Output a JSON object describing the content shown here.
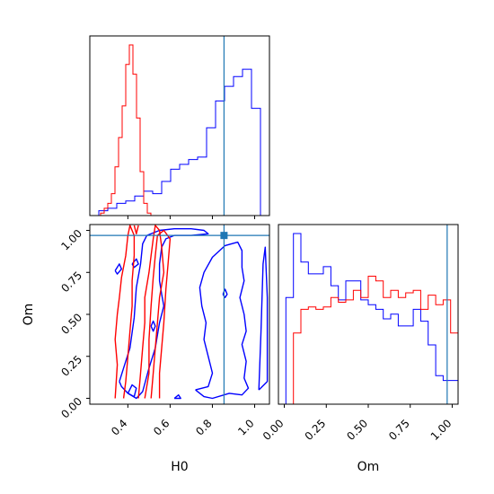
{
  "chart_data": {
    "type": "corner",
    "parameters": [
      "H0",
      "Om"
    ],
    "truth": {
      "H0": 0.855,
      "Om": 0.97
    },
    "colors": {
      "blue": "#0000ff",
      "red": "#ff0000",
      "truth": "#1f77b4"
    },
    "axes": {
      "H0": {
        "range": [
          0.22,
          1.07
        ],
        "ticks": [
          0.4,
          0.6,
          0.8,
          1.0
        ],
        "tick_labels": [
          "0.4",
          "0.6",
          "0.8",
          "1.0"
        ],
        "label": "H0"
      },
      "Om": {
        "range": [
          -0.035,
          1.035
        ],
        "ticks": [
          0.0,
          0.25,
          0.5,
          0.75,
          1.0
        ],
        "tick_labels": [
          "0.00",
          "0.25",
          "0.50",
          "0.75",
          "1.00"
        ],
        "label": "Om"
      }
    },
    "hist_H0": {
      "blue": {
        "bin_start": 0.22,
        "bin_width": 0.0425,
        "counts": [
          0,
          2,
          3,
          5,
          6,
          8,
          10,
          9,
          14,
          19,
          21,
          23,
          24,
          36,
          47,
          53,
          57,
          60,
          44,
          0
        ]
      },
      "red": {
        "bin_start": 0.22,
        "bin_width": 0.017,
        "counts": [
          0,
          0,
          0,
          1,
          3,
          5,
          9,
          20,
          32,
          45,
          62,
          70,
          58,
          40,
          18,
          5,
          1,
          0
        ]
      }
    },
    "hist_Om": {
      "bin_start": -0.035,
      "bin_width": 0.0446,
      "blue": [
        0,
        45,
        72,
        60,
        55,
        55,
        58,
        50,
        44,
        52,
        52,
        44,
        42,
        40,
        36,
        38,
        33,
        33,
        40,
        35,
        25,
        12,
        10,
        10
      ],
      "red": [
        0,
        0,
        30,
        40,
        41,
        40,
        41,
        45,
        43,
        44,
        48,
        45,
        54,
        52,
        45,
        48,
        45,
        47,
        48,
        40,
        46,
        42,
        44,
        30
      ]
    },
    "contours": {
      "blue": [
        [
          [
            0.36,
            0.1
          ],
          [
            0.38,
            0.18
          ],
          [
            0.41,
            0.3
          ],
          [
            0.43,
            0.48
          ],
          [
            0.44,
            0.66
          ],
          [
            0.46,
            0.8
          ],
          [
            0.47,
            0.92
          ],
          [
            0.49,
            0.97
          ],
          [
            0.55,
            1.0
          ],
          [
            0.62,
            1.01
          ],
          [
            0.7,
            1.01
          ],
          [
            0.76,
            1.0
          ],
          [
            0.78,
            0.98
          ],
          [
            0.7,
            0.97
          ],
          [
            0.62,
            0.97
          ],
          [
            0.58,
            0.95
          ],
          [
            0.56,
            0.9
          ],
          [
            0.55,
            0.8
          ],
          [
            0.55,
            0.7
          ],
          [
            0.56,
            0.62
          ],
          [
            0.57,
            0.55
          ],
          [
            0.55,
            0.45
          ],
          [
            0.53,
            0.3
          ],
          [
            0.5,
            0.18
          ],
          [
            0.47,
            0.04
          ],
          [
            0.44,
            0.0
          ],
          [
            0.4,
            0.03
          ],
          [
            0.37,
            0.07
          ],
          [
            0.36,
            0.1
          ]
        ],
        [
          [
            0.4,
            0.03
          ],
          [
            0.42,
            0.08
          ],
          [
            0.44,
            0.06
          ],
          [
            0.43,
            0.01
          ],
          [
            0.4,
            0.03
          ]
        ],
        [
          [
            0.34,
            0.76
          ],
          [
            0.36,
            0.8
          ],
          [
            0.37,
            0.77
          ],
          [
            0.35,
            0.74
          ],
          [
            0.34,
            0.76
          ]
        ],
        [
          [
            0.42,
            0.8
          ],
          [
            0.44,
            0.83
          ],
          [
            0.45,
            0.8
          ],
          [
            0.43,
            0.78
          ],
          [
            0.42,
            0.8
          ]
        ],
        [
          [
            0.51,
            0.43
          ],
          [
            0.52,
            0.46
          ],
          [
            0.53,
            0.43
          ],
          [
            0.52,
            0.4
          ],
          [
            0.51,
            0.43
          ]
        ],
        [
          [
            0.72,
            0.05
          ],
          [
            0.78,
            0.07
          ],
          [
            0.8,
            0.15
          ],
          [
            0.78,
            0.25
          ],
          [
            0.76,
            0.35
          ],
          [
            0.77,
            0.45
          ],
          [
            0.75,
            0.55
          ],
          [
            0.74,
            0.66
          ],
          [
            0.76,
            0.75
          ],
          [
            0.8,
            0.84
          ],
          [
            0.86,
            0.91
          ],
          [
            0.92,
            0.93
          ],
          [
            0.94,
            0.88
          ],
          [
            0.94,
            0.78
          ],
          [
            0.95,
            0.7
          ],
          [
            0.93,
            0.6
          ],
          [
            0.95,
            0.5
          ],
          [
            0.96,
            0.4
          ],
          [
            0.94,
            0.32
          ],
          [
            0.96,
            0.22
          ],
          [
            0.95,
            0.12
          ],
          [
            0.97,
            0.06
          ],
          [
            0.94,
            0.02
          ],
          [
            0.88,
            0.03
          ],
          [
            0.8,
            0.0
          ],
          [
            0.76,
            0.01
          ],
          [
            0.72,
            0.05
          ]
        ],
        [
          [
            1.02,
            0.05
          ],
          [
            1.03,
            0.4
          ],
          [
            1.04,
            0.8
          ],
          [
            1.05,
            0.9
          ],
          [
            1.06,
            0.6
          ],
          [
            1.06,
            0.1
          ],
          [
            1.02,
            0.05
          ]
        ],
        [
          [
            0.85,
            0.62
          ],
          [
            0.86,
            0.65
          ],
          [
            0.87,
            0.62
          ],
          [
            0.86,
            0.6
          ],
          [
            0.85,
            0.62
          ]
        ],
        [
          [
            0.62,
            0.0
          ],
          [
            0.64,
            0.02
          ],
          [
            0.65,
            0.0
          ],
          [
            0.62,
            0.0
          ]
        ]
      ],
      "red": [
        [
          [
            0.34,
            0.0
          ],
          [
            0.35,
            0.2
          ],
          [
            0.34,
            0.35
          ],
          [
            0.35,
            0.5
          ],
          [
            0.36,
            0.6
          ],
          [
            0.37,
            0.72
          ],
          [
            0.39,
            0.85
          ],
          [
            0.4,
            0.97
          ],
          [
            0.41,
            1.03
          ],
          [
            0.43,
            0.97
          ],
          [
            0.43,
            0.85
          ],
          [
            0.42,
            0.7
          ],
          [
            0.42,
            0.55
          ],
          [
            0.41,
            0.4
          ],
          [
            0.4,
            0.25
          ],
          [
            0.39,
            0.1
          ],
          [
            0.38,
            0.0
          ]
        ],
        [
          [
            0.45,
            0.0
          ],
          [
            0.46,
            0.15
          ],
          [
            0.47,
            0.3
          ],
          [
            0.48,
            0.45
          ],
          [
            0.48,
            0.6
          ],
          [
            0.5,
            0.75
          ],
          [
            0.51,
            0.85
          ],
          [
            0.52,
            0.95
          ],
          [
            0.53,
            1.03
          ],
          [
            0.55,
            1.0
          ],
          [
            0.56,
            0.9
          ],
          [
            0.57,
            0.75
          ],
          [
            0.55,
            0.6
          ],
          [
            0.54,
            0.45
          ],
          [
            0.53,
            0.3
          ],
          [
            0.52,
            0.15
          ],
          [
            0.51,
            0.0
          ]
        ],
        [
          [
            0.48,
            0.0
          ],
          [
            0.5,
            0.15
          ],
          [
            0.5,
            0.35
          ],
          [
            0.51,
            0.55
          ],
          [
            0.52,
            0.72
          ],
          [
            0.53,
            0.85
          ],
          [
            0.54,
            0.97
          ],
          [
            0.57,
            1.0
          ],
          [
            0.6,
            0.95
          ],
          [
            0.59,
            0.8
          ],
          [
            0.58,
            0.65
          ],
          [
            0.57,
            0.45
          ],
          [
            0.56,
            0.3
          ],
          [
            0.55,
            0.15
          ],
          [
            0.55,
            0.0
          ]
        ],
        [
          [
            0.43,
            1.03
          ],
          [
            0.44,
            0.98
          ],
          [
            0.45,
            1.03
          ]
        ]
      ]
    },
    "title": "",
    "grid": false
  }
}
